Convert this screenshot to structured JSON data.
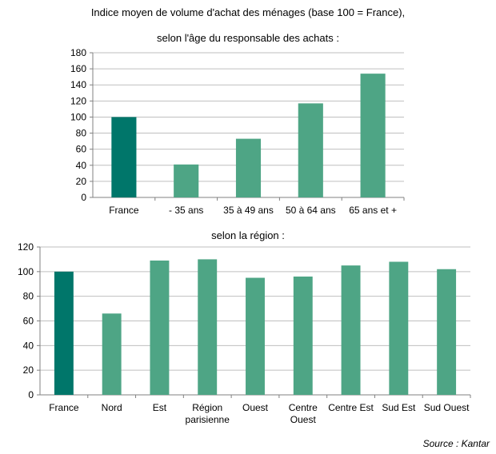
{
  "title_line1": "Indice moyen de volume d'achat des ménages (base 100 = France),",
  "source": "Source : Kantar",
  "colors": {
    "france": "#00766a",
    "other": "#4ea585",
    "grid": "#bfbfbf",
    "axis": "#808080"
  },
  "chart_data": [
    {
      "type": "bar",
      "title": "selon l'âge du responsable des achats :",
      "categories": [
        "France",
        "- 35 ans",
        "35 à 49 ans",
        "50 à 64 ans",
        "65 ans et +"
      ],
      "values": [
        100,
        41,
        73,
        117,
        154
      ],
      "ylim": [
        0,
        180
      ],
      "yticks": [
        0,
        20,
        40,
        60,
        80,
        100,
        120,
        140,
        160,
        180
      ],
      "grid": true,
      "legend": "none"
    },
    {
      "type": "bar",
      "title": "selon la région :",
      "categories": [
        "France",
        "Nord",
        "Est",
        "Région parisienne",
        "Ouest",
        "Centre Ouest",
        "Centre Est",
        "Sud Est",
        "Sud Ouest"
      ],
      "values": [
        100,
        66,
        109,
        110,
        95,
        96,
        105,
        108,
        102
      ],
      "ylim": [
        0,
        120
      ],
      "yticks": [
        0,
        20,
        40,
        60,
        80,
        100,
        120
      ],
      "grid": true,
      "legend": "none"
    }
  ]
}
